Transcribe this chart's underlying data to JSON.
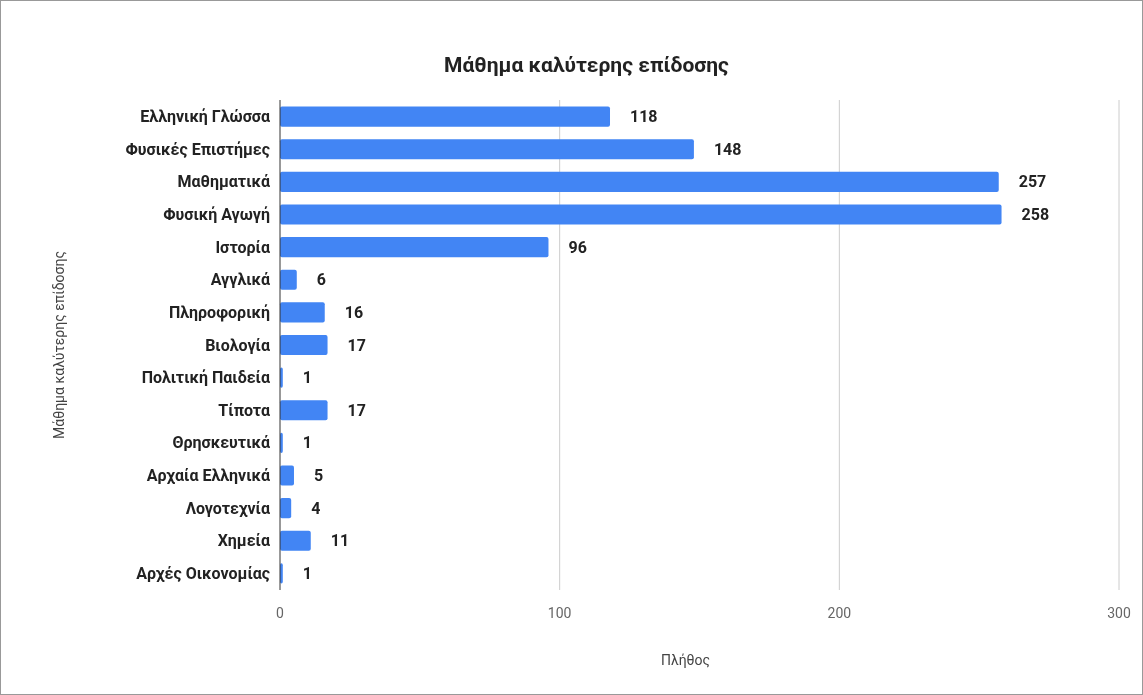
{
  "chart_data": {
    "type": "bar",
    "orientation": "horizontal",
    "title": "Μάθημα καλύτερης επίδοσης",
    "xlabel": "Πλήθος",
    "ylabel": "Μάθημα καλύτερης επίδοσης",
    "categories": [
      "Ελληνική Γλώσσα",
      "Φυσικές Επιστήμες",
      "Μαθηματικά",
      "Φυσική Αγωγή",
      "Ιστορία",
      "Αγγλικά",
      "Πληροφορική",
      "Βιολογία",
      "Πολιτική Παιδεία",
      "Τίποτα",
      "Θρησκευτικά",
      "Αρχαία Ελληνικά",
      "Λογοτεχνία",
      "Χημεία",
      "Αρχές Οικονομίας"
    ],
    "values": [
      118,
      148,
      257,
      258,
      96,
      6,
      16,
      17,
      1,
      17,
      1,
      5,
      4,
      11,
      1
    ],
    "color": "#4285f4",
    "xlim": [
      0,
      300
    ],
    "xticks": [
      0,
      100,
      200,
      300
    ],
    "grid": "x",
    "data_labels": true
  }
}
